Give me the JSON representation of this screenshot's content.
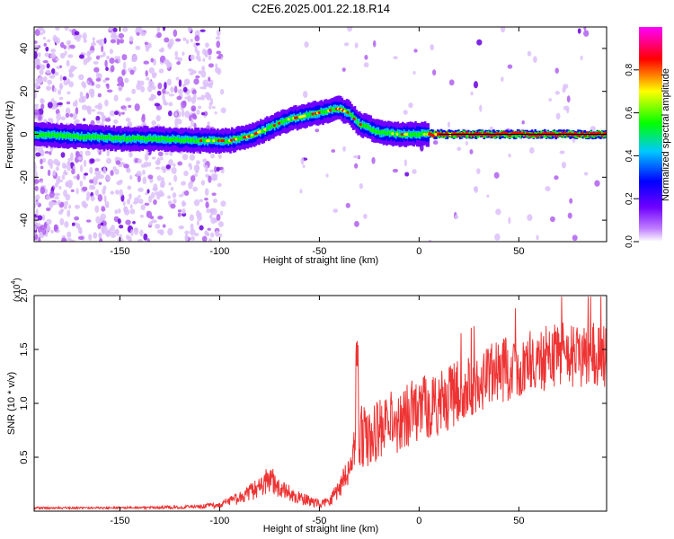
{
  "figure": {
    "title": "C2E6.2025.001.22.18.R14"
  },
  "chart_data": [
    {
      "type": "heatmap",
      "xlabel": "Height of straight line (km)",
      "ylabel": "Frequency (Hz)",
      "xlim": [
        -193,
        94
      ],
      "ylim": [
        -50,
        50
      ],
      "xticks": [
        -150,
        -100,
        -50,
        0,
        50
      ],
      "yticks": [
        -40,
        -20,
        0,
        20,
        40
      ],
      "xtick_labels": [
        "-150",
        "-100",
        "-50",
        "0",
        "50"
      ],
      "ytick_labels": [
        "-40",
        "-20",
        "0",
        "20",
        "40"
      ],
      "colorbar": {
        "label": "Normalized spectral amplitude",
        "range": [
          0,
          1
        ],
        "ticks": [
          0.0,
          0.2,
          0.4,
          0.6,
          0.8
        ],
        "tick_labels": [
          "0.0",
          "0.2",
          "0.4",
          "0.6",
          "0.8"
        ],
        "colormap": [
          "#ffffff",
          "#a000ff",
          "#0000ff",
          "#00c8ff",
          "#00ff00",
          "#ffff00",
          "#ff0000",
          "#ff00ff"
        ]
      },
      "ridge": {
        "description_values_x": [
          -193,
          -170,
          -150,
          -130,
          -110,
          -95,
          -85,
          -75,
          -65,
          -55,
          -50,
          -45,
          -40,
          -35,
          -30,
          -25,
          -20,
          -10,
          0,
          20,
          50,
          94
        ],
        "frequency_y": [
          0,
          -1,
          -2,
          -2,
          -3,
          -3,
          -1,
          3,
          7,
          9,
          10,
          11,
          12,
          10,
          5,
          3,
          1,
          0,
          0,
          0,
          0,
          0
        ]
      },
      "grid": false
    },
    {
      "type": "line",
      "xlabel": "Height of straight line (km)",
      "ylabel": "SNR (10 * v/v)",
      "y_multiplier_label": "(x10",
      "y_multiplier_exp": "4",
      "y_multiplier_close": ")",
      "xlim": [
        -193,
        94
      ],
      "ylim": [
        0,
        2.0
      ],
      "xticks": [
        -150,
        -100,
        -50,
        0,
        50
      ],
      "yticks": [
        0.5,
        1.0,
        1.5,
        2.0
      ],
      "xtick_labels": [
        "-150",
        "-100",
        "-50",
        "0",
        "50"
      ],
      "ytick_labels": [
        "0.5",
        "1.0",
        "1.5",
        "2.0"
      ],
      "series_color": "#ee3333",
      "envelope": {
        "x": [
          -193,
          -150,
          -110,
          -100,
          -90,
          -80,
          -75,
          -70,
          -60,
          -50,
          -45,
          -40,
          -35,
          -32,
          -31,
          -30,
          -25,
          -20,
          -10,
          0,
          10,
          20,
          30,
          40,
          50,
          60,
          70,
          80,
          94
        ],
        "mean": [
          0.03,
          0.03,
          0.04,
          0.06,
          0.12,
          0.22,
          0.3,
          0.2,
          0.12,
          0.07,
          0.1,
          0.22,
          0.4,
          0.6,
          1.3,
          0.7,
          0.65,
          0.75,
          0.85,
          0.95,
          1.0,
          1.1,
          1.2,
          1.3,
          1.35,
          1.4,
          1.45,
          1.45,
          1.45
        ],
        "amp": [
          0.01,
          0.01,
          0.02,
          0.03,
          0.06,
          0.1,
          0.14,
          0.1,
          0.06,
          0.04,
          0.06,
          0.1,
          0.14,
          0.2,
          0.3,
          0.3,
          0.3,
          0.3,
          0.3,
          0.3,
          0.3,
          0.3,
          0.3,
          0.3,
          0.3,
          0.3,
          0.3,
          0.3,
          0.3
        ]
      },
      "grid": false
    }
  ]
}
